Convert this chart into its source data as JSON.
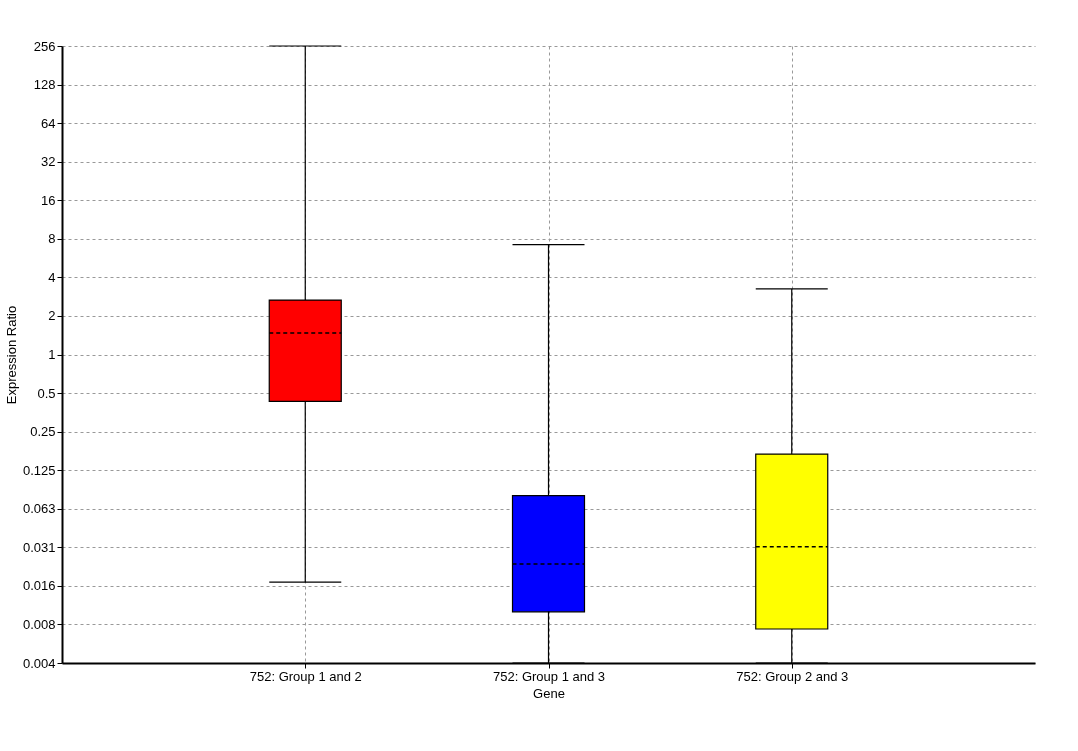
{
  "chart_data": {
    "type": "box",
    "xlabel": "Gene",
    "ylabel": "Expression Ratio",
    "categories": [
      "752: Group 1 and 2",
      "752: Group 1 and 3",
      "752: Group 2 and 3"
    ],
    "boxes": [
      {
        "low": 0.0167,
        "q1": 0.43,
        "median": 1.47,
        "q3": 2.66,
        "high": 256
      },
      {
        "low": 0.00390625,
        "q1": 0.0098,
        "median": 0.0232,
        "q3": 0.079,
        "high": 7.2
      },
      {
        "low": 0.00390625,
        "q1": 0.0072,
        "median": 0.0315,
        "q3": 0.167,
        "high": 3.25
      }
    ],
    "colors": [
      "#ff0000",
      "#0000ff",
      "#ffff00"
    ],
    "log": true,
    "grid": true,
    "ylim": [
      0.00390625,
      256
    ],
    "yticks": [
      {
        "value": 0.00390625,
        "label": "0.004"
      },
      {
        "value": 0.0078125,
        "label": "0.008"
      },
      {
        "value": 0.015625,
        "label": "0.016"
      },
      {
        "value": 0.03125,
        "label": "0.031"
      },
      {
        "value": 0.0625,
        "label": "0.063"
      },
      0.125,
      0.25,
      0.5,
      1,
      2,
      4,
      8,
      16,
      32,
      64,
      128,
      256
    ]
  }
}
